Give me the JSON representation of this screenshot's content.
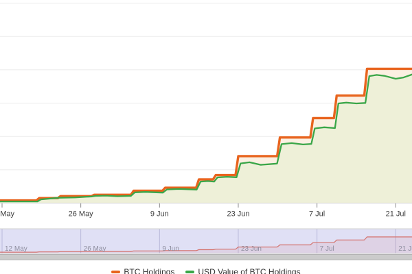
{
  "chart_data": {
    "type": "area",
    "subtype": "stepped-line-area",
    "title": "",
    "x_unit": "date (days offset from 12 May)",
    "y_unit": "relative gridline units (y-axis labels not visible in crop)",
    "ylim": [
      0,
      6
    ],
    "grid": "horizontal-only",
    "x_axis": {
      "ticks": [
        {
          "day": 0,
          "label": "12 May"
        },
        {
          "day": 14,
          "label": "26 May"
        },
        {
          "day": 28,
          "label": "9 Jun"
        },
        {
          "day": 42,
          "label": "23 Jun"
        },
        {
          "day": 56,
          "label": "7 Jul"
        },
        {
          "day": 70,
          "label": "21 Jul"
        }
      ]
    },
    "series": [
      {
        "name": "BTC Holdings",
        "color": "#e8641e",
        "fill_color": "#fbf0e2",
        "step": true,
        "points": [
          [
            -0.4,
            0.08
          ],
          [
            6.6,
            0.15
          ],
          [
            10.4,
            0.21
          ],
          [
            16.4,
            0.25
          ],
          [
            23.4,
            0.37
          ],
          [
            29,
            0.46
          ],
          [
            35,
            0.71
          ],
          [
            38,
            0.84
          ],
          [
            42,
            1.41
          ],
          [
            49.4,
            1.97
          ],
          [
            55.3,
            2.55
          ],
          [
            59.5,
            3.23
          ],
          [
            64.9,
            4.03
          ],
          [
            72.9,
            4.03
          ]
        ]
      },
      {
        "name": "USD Value of BTC Holdings",
        "color": "#3aa648",
        "fill_color": "#eef0d8",
        "step": false,
        "points": [
          [
            -0.4,
            0.05
          ],
          [
            6.3,
            0.05
          ],
          [
            6.9,
            0.11
          ],
          [
            10.1,
            0.16
          ],
          [
            13,
            0.17
          ],
          [
            16.0,
            0.2
          ],
          [
            16.6,
            0.215
          ],
          [
            18.5,
            0.225
          ],
          [
            20.5,
            0.205
          ],
          [
            22.9,
            0.215
          ],
          [
            23.6,
            0.32
          ],
          [
            25.5,
            0.335
          ],
          [
            28.6,
            0.315
          ],
          [
            29.3,
            0.41
          ],
          [
            31.5,
            0.425
          ],
          [
            34.6,
            0.405
          ],
          [
            35.3,
            0.645
          ],
          [
            36.6,
            0.66
          ],
          [
            37.7,
            0.645
          ],
          [
            38.3,
            0.77
          ],
          [
            40,
            0.79
          ],
          [
            41.7,
            0.775
          ],
          [
            42.4,
            1.19
          ],
          [
            44,
            1.225
          ],
          [
            46,
            1.15
          ],
          [
            48.9,
            1.185
          ],
          [
            49.7,
            1.77
          ],
          [
            51.5,
            1.8
          ],
          [
            53.5,
            1.76
          ],
          [
            55.0,
            1.775
          ],
          [
            55.6,
            2.24
          ],
          [
            57.3,
            2.275
          ],
          [
            59.2,
            2.25
          ],
          [
            59.8,
            2.99
          ],
          [
            61.2,
            3.015
          ],
          [
            63,
            2.99
          ],
          [
            64.6,
            3.005
          ],
          [
            65.3,
            3.81
          ],
          [
            66.6,
            3.845
          ],
          [
            68,
            3.82
          ],
          [
            70,
            3.73
          ],
          [
            71.3,
            3.765
          ],
          [
            72.9,
            3.86
          ]
        ]
      }
    ],
    "navigator": {
      "shows_series": "BTC Holdings",
      "line_color": "#d4736e",
      "area_color": "rgba(205,90,90,0.10)",
      "mask_color": "rgba(102,102,204,0.20)",
      "gridline_color": "#b9b9da",
      "label_color": "#8d8d9e"
    },
    "legend_position": "bottom-center"
  },
  "legend": {
    "items": [
      {
        "label": "BTC Holdings",
        "color": "#e8641e"
      },
      {
        "label": "USD Value of BTC Holdings",
        "color": "#3aa648"
      }
    ]
  }
}
